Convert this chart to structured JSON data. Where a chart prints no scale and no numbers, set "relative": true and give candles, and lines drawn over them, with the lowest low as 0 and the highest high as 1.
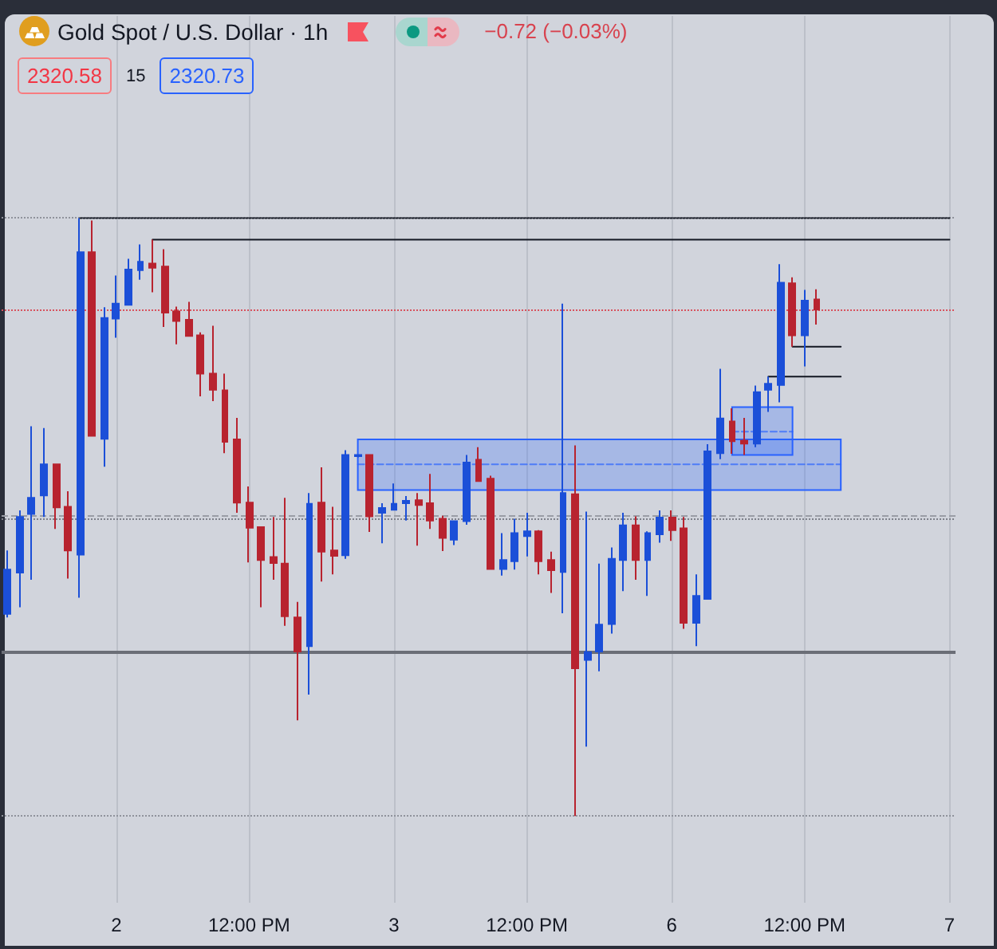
{
  "chart_data": {
    "type": "candlestick",
    "title": "Gold Spot / U.S. Dollar · 1h",
    "annotations": [
      "−0.72 (−0.03%)",
      "2320.58",
      "15",
      "2320.73"
    ],
    "relative": true,
    "grid": "x",
    "tick_labels": "x",
    "categories": [
      null,
      null,
      null,
      null,
      null,
      null,
      null,
      null,
      null,
      "2",
      null,
      null,
      null,
      null,
      null,
      null,
      null,
      null,
      null,
      null,
      "12:00 PM",
      null,
      null,
      null,
      null,
      null,
      null,
      null,
      null,
      null,
      null,
      null,
      "3",
      null,
      null,
      null,
      null,
      null,
      null,
      null,
      null,
      null,
      null,
      "12:00 PM",
      null,
      null,
      null,
      null,
      null,
      null,
      null,
      null,
      null,
      null,
      null,
      "6",
      null,
      null,
      null,
      null,
      null,
      null,
      null,
      null,
      null,
      null,
      "12:00 PM",
      null,
      null,
      null,
      null,
      null,
      null,
      null,
      null,
      null,
      null,
      null,
      "7"
    ],
    "ohlc": [
      [
        0.338,
        0.444,
        0.332,
        0.412
      ],
      [
        0.407,
        0.511,
        0.349,
        0.5
      ],
      [
        0.505,
        0.652,
        0.395,
        0.532
      ],
      [
        0.536,
        0.649,
        0.5,
        0.588
      ],
      [
        0.588,
        0.588,
        0.48,
        0.516
      ],
      [
        0.517,
        0.543,
        0.397,
        0.444
      ],
      [
        0.437,
        1,
        0.365,
        0.943
      ],
      [
        0.943,
        0.996,
        0.636,
        0.636
      ],
      [
        0.631,
        0.851,
        0.584,
        0.833
      ],
      [
        0.832,
        0.904,
        0.8,
        0.857
      ],
      [
        0.855,
        0.932,
        0.855,
        0.914
      ],
      [
        0.913,
        0.956,
        0.897,
        0.927
      ],
      [
        0.924,
        0.964,
        0.876,
        0.917
      ],
      [
        0.919,
        0.948,
        0.818,
        0.842
      ],
      [
        0.844,
        0.852,
        0.789,
        0.828
      ],
      [
        0.83,
        0.86,
        0.803,
        0.803
      ],
      [
        0.804,
        0.809,
        0.702,
        0.74
      ],
      [
        0.74,
        0.82,
        0.694,
        0.713
      ],
      [
        0.712,
        0.74,
        0.607,
        0.626
      ],
      [
        0.63,
        0.666,
        0.507,
        0.524
      ],
      [
        0.524,
        0.551,
        0.424,
        0.482
      ],
      [
        0.483,
        0.483,
        0.349,
        0.428
      ],
      [
        0.433,
        0.5,
        0.395,
        0.423
      ],
      [
        0.422,
        0.532,
        0.318,
        0.334
      ],
      [
        0.332,
        0.358,
        0.16,
        0.275
      ],
      [
        0.284,
        0.54,
        0.203,
        0.522
      ],
      [
        0.524,
        0.583,
        0.392,
        0.442
      ],
      [
        0.444,
        0.517,
        0.404,
        0.435
      ],
      [
        0.436,
        0.612,
        0.43,
        0.604
      ],
      [
        0.602,
        0.605,
        0.6,
        0.604
      ],
      [
        0.604,
        0.604,
        0.475,
        0.501
      ],
      [
        0.507,
        0.523,
        0.456,
        0.515
      ],
      [
        0.512,
        0.556,
        0.512,
        0.522
      ],
      [
        0.523,
        0.535,
        0.494,
        0.527
      ],
      [
        0.528,
        0.54,
        0.452,
        0.52
      ],
      [
        0.523,
        0.572,
        0.48,
        0.494
      ],
      [
        0.497,
        0.502,
        0.443,
        0.465
      ],
      [
        0.462,
        0.493,
        0.453,
        0.493
      ],
      [
        0.493,
        0.604,
        0.487,
        0.591
      ],
      [
        0.596,
        0.617,
        0.56,
        0.56
      ],
      [
        0.564,
        0.569,
        0.413,
        0.413
      ],
      [
        0.413,
        0.473,
        0.402,
        0.428
      ],
      [
        0.426,
        0.497,
        0.412,
        0.473
      ],
      [
        0.468,
        0.507,
        0.434,
        0.476
      ],
      [
        0.476,
        0.478,
        0.404,
        0.426
      ],
      [
        0.428,
        0.442,
        0.373,
        0.411
      ],
      [
        0.408,
        0.857,
        0.339,
        0.54
      ],
      [
        0.538,
        0.62,
        0,
        0.247
      ],
      [
        0.261,
        0.509,
        0.116,
        0.274
      ],
      [
        0.275,
        0.422,
        0.242,
        0.32
      ],
      [
        0.321,
        0.449,
        0.305,
        0.43
      ],
      [
        0.428,
        0.507,
        0.376,
        0.486
      ],
      [
        0.486,
        0.501,
        0.395,
        0.428
      ],
      [
        0.428,
        0.476,
        0.368,
        0.473
      ],
      [
        0.471,
        0.511,
        0.457,
        0.499
      ],
      [
        0.499,
        0.511,
        0.46,
        0.478
      ],
      [
        0.481,
        0.5,
        0.313,
        0.323
      ],
      [
        0.323,
        0.404,
        0.284,
        0.368
      ],
      [
        0.363,
        0.622,
        0.363,
        0.61
      ],
      [
        0.607,
        0.748,
        0.597,
        0.665
      ],
      [
        0.66,
        0.682,
        0.606,
        0.627
      ],
      [
        0.628,
        0.666,
        0.604,
        0.623
      ],
      [
        0.623,
        0.72,
        0.617,
        0.709
      ],
      [
        0.713,
        0.735,
        0.676,
        0.723
      ],
      [
        0.721,
        0.923,
        0.692,
        0.892
      ],
      [
        0.891,
        0.901,
        0.785,
        0.804
      ],
      [
        0.804,
        0.88,
        0.752,
        0.862
      ],
      [
        0.864,
        0.881,
        0.822,
        0.847
      ],
      null,
      null,
      null,
      null,
      null,
      null,
      null,
      null,
      null,
      null,
      null
    ],
    "colors": [
      "#1b4fd8",
      "#1b4fd8",
      "#1b4fd8",
      "#1b4fd8",
      "#b8232f",
      "#b8232f",
      "#1b4fd8",
      "#b8232f",
      "#1b4fd8",
      "#1b4fd8",
      "#1b4fd8",
      "#1b4fd8",
      "#b8232f",
      "#b8232f",
      "#b8232f",
      "#b8232f",
      "#b8232f",
      "#b8232f",
      "#b8232f",
      "#b8232f",
      "#b8232f",
      "#b8232f",
      "#b8232f",
      "#b8232f",
      "#b8232f",
      "#1b4fd8",
      "#b8232f",
      "#b8232f",
      "#1b4fd8",
      "#1b4fd8",
      "#b8232f",
      "#1b4fd8",
      "#1b4fd8",
      "#1b4fd8",
      "#b8232f",
      "#b8232f",
      "#b8232f",
      "#1b4fd8",
      "#1b4fd8",
      "#b8232f",
      "#b8232f",
      "#1b4fd8",
      "#1b4fd8",
      "#1b4fd8",
      "#b8232f",
      "#b8232f",
      "#1b4fd8",
      "#b8232f",
      "#1b4fd8",
      "#1b4fd8",
      "#1b4fd8",
      "#1b4fd8",
      "#b8232f",
      "#1b4fd8",
      "#1b4fd8",
      "#b8232f",
      "#b8232f",
      "#1b4fd8",
      "#1b4fd8",
      "#1b4fd8",
      "#b8232f",
      "#b8232f",
      "#1b4fd8",
      "#1b4fd8",
      "#1b4fd8",
      "#b8232f",
      "#1b4fd8",
      "#b8232f",
      null,
      null,
      null,
      null,
      null,
      null,
      null,
      null,
      null,
      null,
      null
    ],
    "series": [
      {
        "type": "line",
        "color": "#131722",
        "line_style": "dotted",
        "values": [
          null,
          null,
          null,
          null,
          null,
          null,
          1,
          1,
          1,
          1,
          1,
          1,
          1,
          1,
          1,
          1,
          1,
          1,
          1,
          1,
          1,
          1,
          1,
          1,
          1,
          1,
          1,
          1,
          1,
          1,
          1,
          1,
          1,
          1,
          1,
          1,
          1,
          1,
          1,
          1,
          1,
          1,
          1,
          1,
          1,
          1,
          1,
          1,
          1,
          1,
          1,
          1,
          1,
          1,
          1,
          1,
          1,
          1,
          1,
          1,
          1,
          1,
          1,
          1,
          1,
          1,
          1,
          1,
          1,
          1,
          1,
          1,
          1,
          1,
          1,
          1,
          1,
          1,
          1
        ]
      },
      {
        "type": "line",
        "color": "#131722",
        "line_style": "solid",
        "values": [
          null,
          null,
          null,
          null,
          null,
          null,
          null,
          null,
          null,
          null,
          null,
          null,
          0.964,
          0.964,
          0.964,
          0.964,
          0.964,
          0.964,
          0.964,
          0.964,
          0.964,
          0.964,
          0.964,
          0.964,
          0.964,
          0.964,
          0.964,
          0.964,
          0.964,
          0.964,
          0.964,
          0.964,
          0.964,
          0.964,
          0.964,
          0.964,
          0.964,
          0.964,
          0.964,
          0.964,
          0.964,
          0.964,
          0.964,
          0.964,
          0.964,
          0.964,
          0.964,
          0.964,
          0.964,
          0.964,
          0.964,
          0.964,
          0.964,
          0.964,
          0.964,
          0.964,
          0.964,
          0.964,
          0.964,
          0.964,
          0.964,
          0.964,
          0.964,
          0.964,
          0.964,
          0.964,
          0.964,
          0.964,
          0.964,
          0.964,
          0.964,
          0.964,
          0.964,
          0.964,
          0.964,
          0.964,
          0.964,
          0.964,
          0.964
        ]
      },
      {
        "type": "line",
        "color": "#131722",
        "line_style": "solid",
        "values": [
          null,
          null,
          null,
          null,
          null,
          null,
          null,
          null,
          null,
          null,
          null,
          null,
          null,
          null,
          null,
          null,
          null,
          null,
          null,
          null,
          null,
          null,
          null,
          null,
          null,
          null,
          null,
          null,
          null,
          null,
          null,
          null,
          null,
          null,
          null,
          null,
          null,
          null,
          null,
          null,
          null,
          null,
          null,
          null,
          null,
          null,
          null,
          null,
          null,
          null,
          null,
          null,
          null,
          null,
          null,
          null,
          null,
          null,
          null,
          null,
          null,
          null,
          null,
          null,
          null,
          0.785,
          0.785,
          0.785,
          0.785,
          0.785,
          null,
          null,
          null,
          null,
          null,
          null,
          null,
          null,
          null
        ]
      },
      {
        "type": "line",
        "color": "#131722",
        "line_style": "solid",
        "values": [
          null,
          null,
          null,
          null,
          null,
          null,
          null,
          null,
          null,
          null,
          null,
          null,
          null,
          null,
          null,
          null,
          null,
          null,
          null,
          null,
          null,
          null,
          null,
          null,
          null,
          null,
          null,
          null,
          null,
          null,
          null,
          null,
          null,
          null,
          null,
          null,
          null,
          null,
          null,
          null,
          null,
          null,
          null,
          null,
          null,
          null,
          null,
          null,
          null,
          null,
          null,
          null,
          null,
          null,
          null,
          null,
          null,
          null,
          null,
          null,
          null,
          null,
          null,
          0.735,
          0.735,
          0.735,
          0.735,
          0.735,
          0.735,
          0.735,
          null,
          null,
          null,
          null,
          null,
          null,
          null,
          null,
          null
        ]
      },
      {
        "type": "line",
        "color": "#2962ff",
        "line_style": "dashed",
        "values": [
          null,
          null,
          null,
          null,
          null,
          null,
          null,
          null,
          null,
          null,
          null,
          null,
          null,
          null,
          null,
          null,
          null,
          null,
          null,
          null,
          null,
          null,
          null,
          null,
          null,
          null,
          null,
          null,
          null,
          0.588,
          0.588,
          0.588,
          0.588,
          0.588,
          0.588,
          0.588,
          0.588,
          0.588,
          0.588,
          0.588,
          0.588,
          0.588,
          0.588,
          0.588,
          0.588,
          0.588,
          0.588,
          0.588,
          0.588,
          0.588,
          0.588,
          0.588,
          0.588,
          0.588,
          0.588,
          0.588,
          0.588,
          0.588,
          0.588,
          0.588,
          0.588,
          0.588,
          0.588,
          0.588,
          0.588,
          0.588,
          0.588,
          0.588,
          0.588,
          0.588,
          null,
          null,
          null,
          null,
          null,
          null,
          null,
          null,
          null
        ],
        "lower": [
          null,
          null,
          null,
          null,
          null,
          null,
          null,
          null,
          null,
          null,
          null,
          null,
          null,
          null,
          null,
          null,
          null,
          null,
          null,
          null,
          null,
          null,
          null,
          null,
          null,
          null,
          null,
          null,
          null,
          0.545,
          0.545,
          0.545,
          0.545,
          0.545,
          0.545,
          0.545,
          0.545,
          0.545,
          0.545,
          0.545,
          0.545,
          0.545,
          0.545,
          0.545,
          0.545,
          0.545,
          0.545,
          0.545,
          0.545,
          0.545,
          0.545,
          0.545,
          0.545,
          0.545,
          0.545,
          0.545,
          0.545,
          0.545,
          0.545,
          0.545,
          0.545,
          0.545,
          0.545,
          0.545,
          0.545,
          0.545,
          0.545,
          0.545,
          0.545,
          0.545,
          null,
          null,
          null,
          null,
          null,
          null,
          null,
          null,
          null
        ],
        "upper": [
          null,
          null,
          null,
          null,
          null,
          null,
          null,
          null,
          null,
          null,
          null,
          null,
          null,
          null,
          null,
          null,
          null,
          null,
          null,
          null,
          null,
          null,
          null,
          null,
          null,
          null,
          null,
          null,
          null,
          0.63,
          0.63,
          0.63,
          0.63,
          0.63,
          0.63,
          0.63,
          0.63,
          0.63,
          0.63,
          0.63,
          0.63,
          0.63,
          0.63,
          0.63,
          0.63,
          0.63,
          0.63,
          0.63,
          0.63,
          0.63,
          0.63,
          0.63,
          0.63,
          0.63,
          0.63,
          0.63,
          0.63,
          0.63,
          0.63,
          0.63,
          0.63,
          0.63,
          0.63,
          0.63,
          0.63,
          0.63,
          0.63,
          0.63,
          0.63,
          0.63,
          null,
          null,
          null,
          null,
          null,
          null,
          null,
          null,
          null
        ]
      },
      {
        "type": "line",
        "color": "#2962ff",
        "line_style": "dashed",
        "values": [
          null,
          null,
          null,
          null,
          null,
          null,
          null,
          null,
          null,
          null,
          null,
          null,
          null,
          null,
          null,
          null,
          null,
          null,
          null,
          null,
          null,
          null,
          null,
          null,
          null,
          null,
          null,
          null,
          null,
          null,
          null,
          null,
          null,
          null,
          null,
          null,
          null,
          null,
          null,
          null,
          null,
          null,
          null,
          null,
          null,
          null,
          null,
          null,
          null,
          null,
          null,
          null,
          null,
          null,
          null,
          null,
          null,
          null,
          null,
          null,
          0.643,
          0.643,
          0.643,
          0.643,
          0.643,
          0.643,
          null,
          null,
          null,
          null,
          null,
          null,
          null,
          null,
          null,
          null,
          null,
          null,
          null
        ],
        "lower": [
          null,
          null,
          null,
          null,
          null,
          null,
          null,
          null,
          null,
          null,
          null,
          null,
          null,
          null,
          null,
          null,
          null,
          null,
          null,
          null,
          null,
          null,
          null,
          null,
          null,
          null,
          null,
          null,
          null,
          null,
          null,
          null,
          null,
          null,
          null,
          null,
          null,
          null,
          null,
          null,
          null,
          null,
          null,
          null,
          null,
          null,
          null,
          null,
          null,
          null,
          null,
          null,
          null,
          null,
          null,
          null,
          null,
          null,
          null,
          null,
          0.604,
          0.604,
          0.604,
          0.604,
          0.604,
          0.604,
          null,
          null,
          null,
          null,
          null,
          null,
          null,
          null,
          null,
          null,
          null,
          null,
          null
        ],
        "upper": [
          null,
          null,
          null,
          null,
          null,
          null,
          null,
          null,
          null,
          null,
          null,
          null,
          null,
          null,
          null,
          null,
          null,
          null,
          null,
          null,
          null,
          null,
          null,
          null,
          null,
          null,
          null,
          null,
          null,
          null,
          null,
          null,
          null,
          null,
          null,
          null,
          null,
          null,
          null,
          null,
          null,
          null,
          null,
          null,
          null,
          null,
          null,
          null,
          null,
          null,
          null,
          null,
          null,
          null,
          null,
          null,
          null,
          null,
          null,
          null,
          0.684,
          0.684,
          0.684,
          0.684,
          0.684,
          0.684,
          null,
          null,
          null,
          null,
          null,
          null,
          null,
          null,
          null,
          null,
          null,
          null,
          null
        ]
      }
    ],
    "ref_lines": [
      {
        "axis": "y",
        "value": 1,
        "color": "#8f929b",
        "line_style": "dotted"
      },
      {
        "axis": "y",
        "value": 0.847,
        "color": "#d8525e",
        "line_style": "dotted"
      },
      {
        "axis": "y",
        "value": 0.503,
        "color": "#9a9da6",
        "line_style": "dashed"
      },
      {
        "axis": "y",
        "value": 0.498,
        "color": "#7d808a",
        "line_style": "dotted"
      },
      {
        "axis": "y",
        "value": 0.275,
        "color": "#6b6e77",
        "line_style": "solid"
      },
      {
        "axis": "y",
        "value": 0,
        "color": "#8f929b",
        "line_style": "dotted"
      }
    ]
  }
}
